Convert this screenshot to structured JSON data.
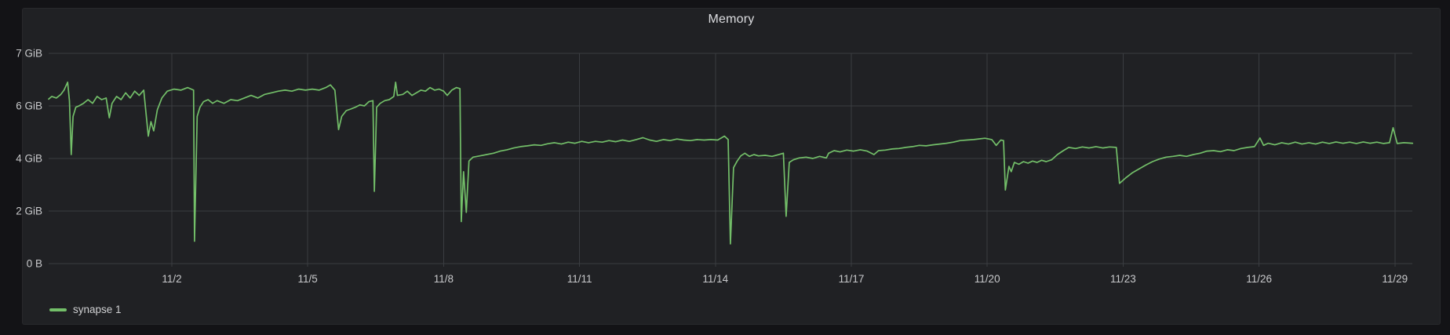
{
  "panel": {
    "title": "Memory"
  },
  "legend": {
    "items": [
      {
        "label": "synapse 1",
        "color": "#73bf69"
      }
    ]
  },
  "colors": {
    "outer_background": "#131316",
    "panel_background": "#202124",
    "grid": "#3a3d41",
    "axis_text": "#c8c9cb",
    "title_text": "#dcdde0",
    "legend_text": "#d0d1d3",
    "series_green": "#73bf69"
  },
  "chart_data": {
    "type": "line",
    "title": "Memory",
    "grid": true,
    "legend_position": "bottom-left",
    "x_unit": "day of November (fractional; values < 1 are late October)",
    "y_unit": "GiB",
    "x_range_days": [
      -0.72,
      29.39
    ],
    "y_axis": {
      "ticks": [
        {
          "label": "0 B",
          "value": 0
        },
        {
          "label": "2 GiB",
          "value": 2
        },
        {
          "label": "4 GiB",
          "value": 4
        },
        {
          "label": "6 GiB",
          "value": 6
        },
        {
          "label": "7 GiB",
          "value": 7
        }
      ]
    },
    "x_axis": {
      "ticks": [
        {
          "label": "11/2",
          "day": 2
        },
        {
          "label": "11/5",
          "day": 5
        },
        {
          "label": "11/8",
          "day": 8
        },
        {
          "label": "11/11",
          "day": 11
        },
        {
          "label": "11/14",
          "day": 14
        },
        {
          "label": "11/17",
          "day": 17
        },
        {
          "label": "11/20",
          "day": 20
        },
        {
          "label": "11/23",
          "day": 23
        },
        {
          "label": "11/26",
          "day": 26
        },
        {
          "label": "11/29",
          "day": 29
        }
      ]
    },
    "series": [
      {
        "name": "synapse 1",
        "color": "#73bf69",
        "points": [
          [
            -0.72,
            6.13
          ],
          [
            -0.65,
            6.18
          ],
          [
            -0.55,
            6.15
          ],
          [
            -0.45,
            6.22
          ],
          [
            -0.38,
            6.3
          ],
          [
            -0.3,
            6.45
          ],
          [
            -0.26,
            6.1
          ],
          [
            -0.22,
            4.15
          ],
          [
            -0.18,
            5.6
          ],
          [
            -0.12,
            5.95
          ],
          [
            -0.05,
            6.0
          ],
          [
            0.05,
            6.05
          ],
          [
            0.15,
            6.12
          ],
          [
            0.25,
            6.05
          ],
          [
            0.35,
            6.18
          ],
          [
            0.45,
            6.12
          ],
          [
            0.55,
            6.15
          ],
          [
            0.62,
            5.55
          ],
          [
            0.68,
            6.05
          ],
          [
            0.78,
            6.18
          ],
          [
            0.88,
            6.12
          ],
          [
            0.98,
            6.25
          ],
          [
            1.08,
            6.15
          ],
          [
            1.18,
            6.28
          ],
          [
            1.28,
            6.2
          ],
          [
            1.38,
            6.3
          ],
          [
            1.48,
            4.85
          ],
          [
            1.54,
            5.4
          ],
          [
            1.6,
            5.05
          ],
          [
            1.68,
            5.85
          ],
          [
            1.78,
            6.15
          ],
          [
            1.9,
            6.28
          ],
          [
            2.05,
            6.32
          ],
          [
            2.2,
            6.3
          ],
          [
            2.35,
            6.35
          ],
          [
            2.48,
            6.3
          ],
          [
            2.5,
            0.85
          ],
          [
            2.56,
            5.6
          ],
          [
            2.62,
            5.95
          ],
          [
            2.7,
            6.08
          ],
          [
            2.8,
            6.12
          ],
          [
            2.9,
            6.05
          ],
          [
            3.0,
            6.1
          ],
          [
            3.15,
            6.05
          ],
          [
            3.3,
            6.12
          ],
          [
            3.45,
            6.1
          ],
          [
            3.6,
            6.15
          ],
          [
            3.75,
            6.2
          ],
          [
            3.9,
            6.15
          ],
          [
            4.05,
            6.22
          ],
          [
            4.2,
            6.25
          ],
          [
            4.35,
            6.28
          ],
          [
            4.5,
            6.3
          ],
          [
            4.65,
            6.28
          ],
          [
            4.8,
            6.32
          ],
          [
            4.95,
            6.3
          ],
          [
            5.1,
            6.32
          ],
          [
            5.25,
            6.3
          ],
          [
            5.4,
            6.35
          ],
          [
            5.5,
            6.4
          ],
          [
            5.6,
            6.3
          ],
          [
            5.68,
            5.1
          ],
          [
            5.75,
            5.6
          ],
          [
            5.85,
            5.82
          ],
          [
            5.95,
            5.88
          ],
          [
            6.05,
            5.95
          ],
          [
            6.15,
            6.02
          ],
          [
            6.25,
            6.0
          ],
          [
            6.35,
            6.08
          ],
          [
            6.44,
            6.1
          ],
          [
            6.47,
            2.75
          ],
          [
            6.52,
            5.95
          ],
          [
            6.6,
            6.05
          ],
          [
            6.7,
            6.1
          ],
          [
            6.8,
            6.12
          ],
          [
            6.9,
            6.18
          ],
          [
            6.94,
            6.45
          ],
          [
            6.98,
            6.2
          ],
          [
            7.1,
            6.22
          ],
          [
            7.2,
            6.28
          ],
          [
            7.3,
            6.2
          ],
          [
            7.4,
            6.25
          ],
          [
            7.5,
            6.3
          ],
          [
            7.6,
            6.28
          ],
          [
            7.7,
            6.35
          ],
          [
            7.8,
            6.3
          ],
          [
            7.9,
            6.32
          ],
          [
            8.0,
            6.28
          ],
          [
            8.08,
            6.2
          ],
          [
            8.18,
            6.3
          ],
          [
            8.28,
            6.35
          ],
          [
            8.36,
            6.33
          ],
          [
            8.39,
            1.6
          ],
          [
            8.44,
            3.5
          ],
          [
            8.5,
            1.95
          ],
          [
            8.56,
            3.9
          ],
          [
            8.65,
            4.05
          ],
          [
            8.8,
            4.1
          ],
          [
            8.95,
            4.15
          ],
          [
            9.1,
            4.2
          ],
          [
            9.25,
            4.28
          ],
          [
            9.4,
            4.33
          ],
          [
            9.55,
            4.4
          ],
          [
            9.7,
            4.45
          ],
          [
            9.85,
            4.48
          ],
          [
            10.0,
            4.52
          ],
          [
            10.15,
            4.5
          ],
          [
            10.3,
            4.56
          ],
          [
            10.45,
            4.6
          ],
          [
            10.6,
            4.55
          ],
          [
            10.75,
            4.62
          ],
          [
            10.9,
            4.58
          ],
          [
            11.05,
            4.65
          ],
          [
            11.2,
            4.6
          ],
          [
            11.35,
            4.65
          ],
          [
            11.5,
            4.62
          ],
          [
            11.65,
            4.68
          ],
          [
            11.8,
            4.64
          ],
          [
            11.95,
            4.7
          ],
          [
            12.1,
            4.65
          ],
          [
            12.25,
            4.72
          ],
          [
            12.4,
            4.79
          ],
          [
            12.55,
            4.7
          ],
          [
            12.7,
            4.65
          ],
          [
            12.85,
            4.72
          ],
          [
            13.0,
            4.68
          ],
          [
            13.15,
            4.74
          ],
          [
            13.3,
            4.7
          ],
          [
            13.45,
            4.68
          ],
          [
            13.6,
            4.72
          ],
          [
            13.75,
            4.7
          ],
          [
            13.9,
            4.72
          ],
          [
            14.05,
            4.7
          ],
          [
            14.2,
            4.85
          ],
          [
            14.28,
            4.72
          ],
          [
            14.33,
            0.75
          ],
          [
            14.4,
            3.65
          ],
          [
            14.48,
            3.9
          ],
          [
            14.56,
            4.1
          ],
          [
            14.65,
            4.2
          ],
          [
            14.75,
            4.08
          ],
          [
            14.85,
            4.15
          ],
          [
            14.95,
            4.1
          ],
          [
            15.1,
            4.12
          ],
          [
            15.25,
            4.08
          ],
          [
            15.4,
            4.15
          ],
          [
            15.5,
            4.2
          ],
          [
            15.56,
            1.8
          ],
          [
            15.63,
            3.85
          ],
          [
            15.72,
            3.95
          ],
          [
            15.85,
            4.02
          ],
          [
            16.0,
            4.05
          ],
          [
            16.15,
            4.0
          ],
          [
            16.3,
            4.08
          ],
          [
            16.45,
            4.02
          ],
          [
            16.5,
            4.2
          ],
          [
            16.62,
            4.3
          ],
          [
            16.75,
            4.25
          ],
          [
            16.9,
            4.32
          ],
          [
            17.05,
            4.28
          ],
          [
            17.2,
            4.33
          ],
          [
            17.35,
            4.28
          ],
          [
            17.5,
            4.15
          ],
          [
            17.6,
            4.3
          ],
          [
            17.75,
            4.32
          ],
          [
            17.9,
            4.36
          ],
          [
            18.05,
            4.38
          ],
          [
            18.2,
            4.42
          ],
          [
            18.35,
            4.45
          ],
          [
            18.5,
            4.5
          ],
          [
            18.65,
            4.48
          ],
          [
            18.8,
            4.52
          ],
          [
            18.95,
            4.55
          ],
          [
            19.1,
            4.58
          ],
          [
            19.25,
            4.62
          ],
          [
            19.4,
            4.68
          ],
          [
            19.55,
            4.7
          ],
          [
            19.7,
            4.72
          ],
          [
            19.85,
            4.75
          ],
          [
            19.95,
            4.77
          ],
          [
            20.1,
            4.72
          ],
          [
            20.2,
            4.5
          ],
          [
            20.3,
            4.7
          ],
          [
            20.36,
            4.68
          ],
          [
            20.4,
            2.8
          ],
          [
            20.48,
            3.7
          ],
          [
            20.53,
            3.5
          ],
          [
            20.6,
            3.85
          ],
          [
            20.7,
            3.78
          ],
          [
            20.8,
            3.88
          ],
          [
            20.9,
            3.82
          ],
          [
            21.0,
            3.9
          ],
          [
            21.1,
            3.85
          ],
          [
            21.2,
            3.93
          ],
          [
            21.3,
            3.88
          ],
          [
            21.42,
            3.95
          ],
          [
            21.55,
            4.15
          ],
          [
            21.68,
            4.3
          ],
          [
            21.8,
            4.42
          ],
          [
            21.95,
            4.38
          ],
          [
            22.1,
            4.44
          ],
          [
            22.25,
            4.4
          ],
          [
            22.4,
            4.45
          ],
          [
            22.55,
            4.4
          ],
          [
            22.7,
            4.44
          ],
          [
            22.85,
            4.42
          ],
          [
            22.92,
            3.05
          ],
          [
            23.05,
            3.25
          ],
          [
            23.2,
            3.45
          ],
          [
            23.35,
            3.6
          ],
          [
            23.5,
            3.75
          ],
          [
            23.65,
            3.88
          ],
          [
            23.8,
            3.98
          ],
          [
            23.95,
            4.05
          ],
          [
            24.1,
            4.08
          ],
          [
            24.25,
            4.12
          ],
          [
            24.4,
            4.08
          ],
          [
            24.55,
            4.15
          ],
          [
            24.7,
            4.2
          ],
          [
            24.85,
            4.28
          ],
          [
            25.0,
            4.3
          ],
          [
            25.15,
            4.26
          ],
          [
            25.3,
            4.33
          ],
          [
            25.45,
            4.3
          ],
          [
            25.6,
            4.38
          ],
          [
            25.75,
            4.42
          ],
          [
            25.9,
            4.45
          ],
          [
            26.02,
            4.78
          ],
          [
            26.1,
            4.5
          ],
          [
            26.2,
            4.58
          ],
          [
            26.35,
            4.52
          ],
          [
            26.5,
            4.6
          ],
          [
            26.65,
            4.55
          ],
          [
            26.8,
            4.62
          ],
          [
            26.95,
            4.55
          ],
          [
            27.1,
            4.6
          ],
          [
            27.25,
            4.55
          ],
          [
            27.4,
            4.62
          ],
          [
            27.55,
            4.57
          ],
          [
            27.7,
            4.63
          ],
          [
            27.85,
            4.58
          ],
          [
            28.0,
            4.62
          ],
          [
            28.15,
            4.57
          ],
          [
            28.3,
            4.63
          ],
          [
            28.45,
            4.58
          ],
          [
            28.6,
            4.62
          ],
          [
            28.75,
            4.57
          ],
          [
            28.88,
            4.6
          ],
          [
            28.96,
            5.17
          ],
          [
            29.05,
            4.57
          ],
          [
            29.2,
            4.6
          ],
          [
            29.39,
            4.58
          ]
        ]
      }
    ]
  }
}
